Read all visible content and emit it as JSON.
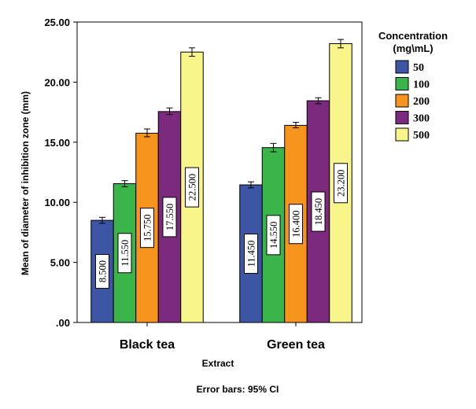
{
  "chart_data": {
    "type": "bar",
    "categories": [
      "Black tea",
      "Green tea"
    ],
    "series": [
      {
        "name": "50",
        "values": [
          8.5,
          11.45
        ],
        "ci": [
          [
            8.25,
            8.75
          ],
          [
            11.2,
            11.7
          ]
        ],
        "labels": [
          "8.500",
          "11.450"
        ],
        "color": "#3d55a5"
      },
      {
        "name": "100",
        "values": [
          11.55,
          14.55
        ],
        "ci": [
          [
            11.3,
            11.8
          ],
          [
            14.2,
            14.9
          ]
        ],
        "labels": [
          "11.550",
          "14.550"
        ],
        "color": "#3bb54a"
      },
      {
        "name": "200",
        "values": [
          15.75,
          16.4
        ],
        "ci": [
          [
            15.45,
            16.1
          ],
          [
            16.2,
            16.65
          ]
        ],
        "labels": [
          "15.750",
          "16.400"
        ],
        "color": "#f7941d"
      },
      {
        "name": "300",
        "values": [
          17.55,
          18.45
        ],
        "ci": [
          [
            17.3,
            17.85
          ],
          [
            18.2,
            18.7
          ]
        ],
        "labels": [
          "17.550",
          "18.450"
        ],
        "color": "#7b2a7e"
      },
      {
        "name": "500",
        "values": [
          22.5,
          23.2
        ],
        "ci": [
          [
            22.15,
            22.85
          ],
          [
            22.85,
            23.55
          ]
        ],
        "labels": [
          "22.500",
          "23.200"
        ],
        "color": "#f8f68a"
      }
    ],
    "xlabel": "Extract",
    "ylabel": "Mean of diameter of inhibition zone (mm)",
    "ylim": [
      0,
      25
    ],
    "yticks": [
      0,
      5,
      10,
      15,
      20,
      25
    ],
    "ytick_labels": [
      ".00",
      "5.00",
      "10.00",
      "15.00",
      "20.00",
      "25.00"
    ],
    "legend_title_line1": "Concentration",
    "legend_title_line2": "(mg\\mL)",
    "legend_position": "right",
    "grid": false,
    "footnote": "Error bars: 95% CI"
  }
}
